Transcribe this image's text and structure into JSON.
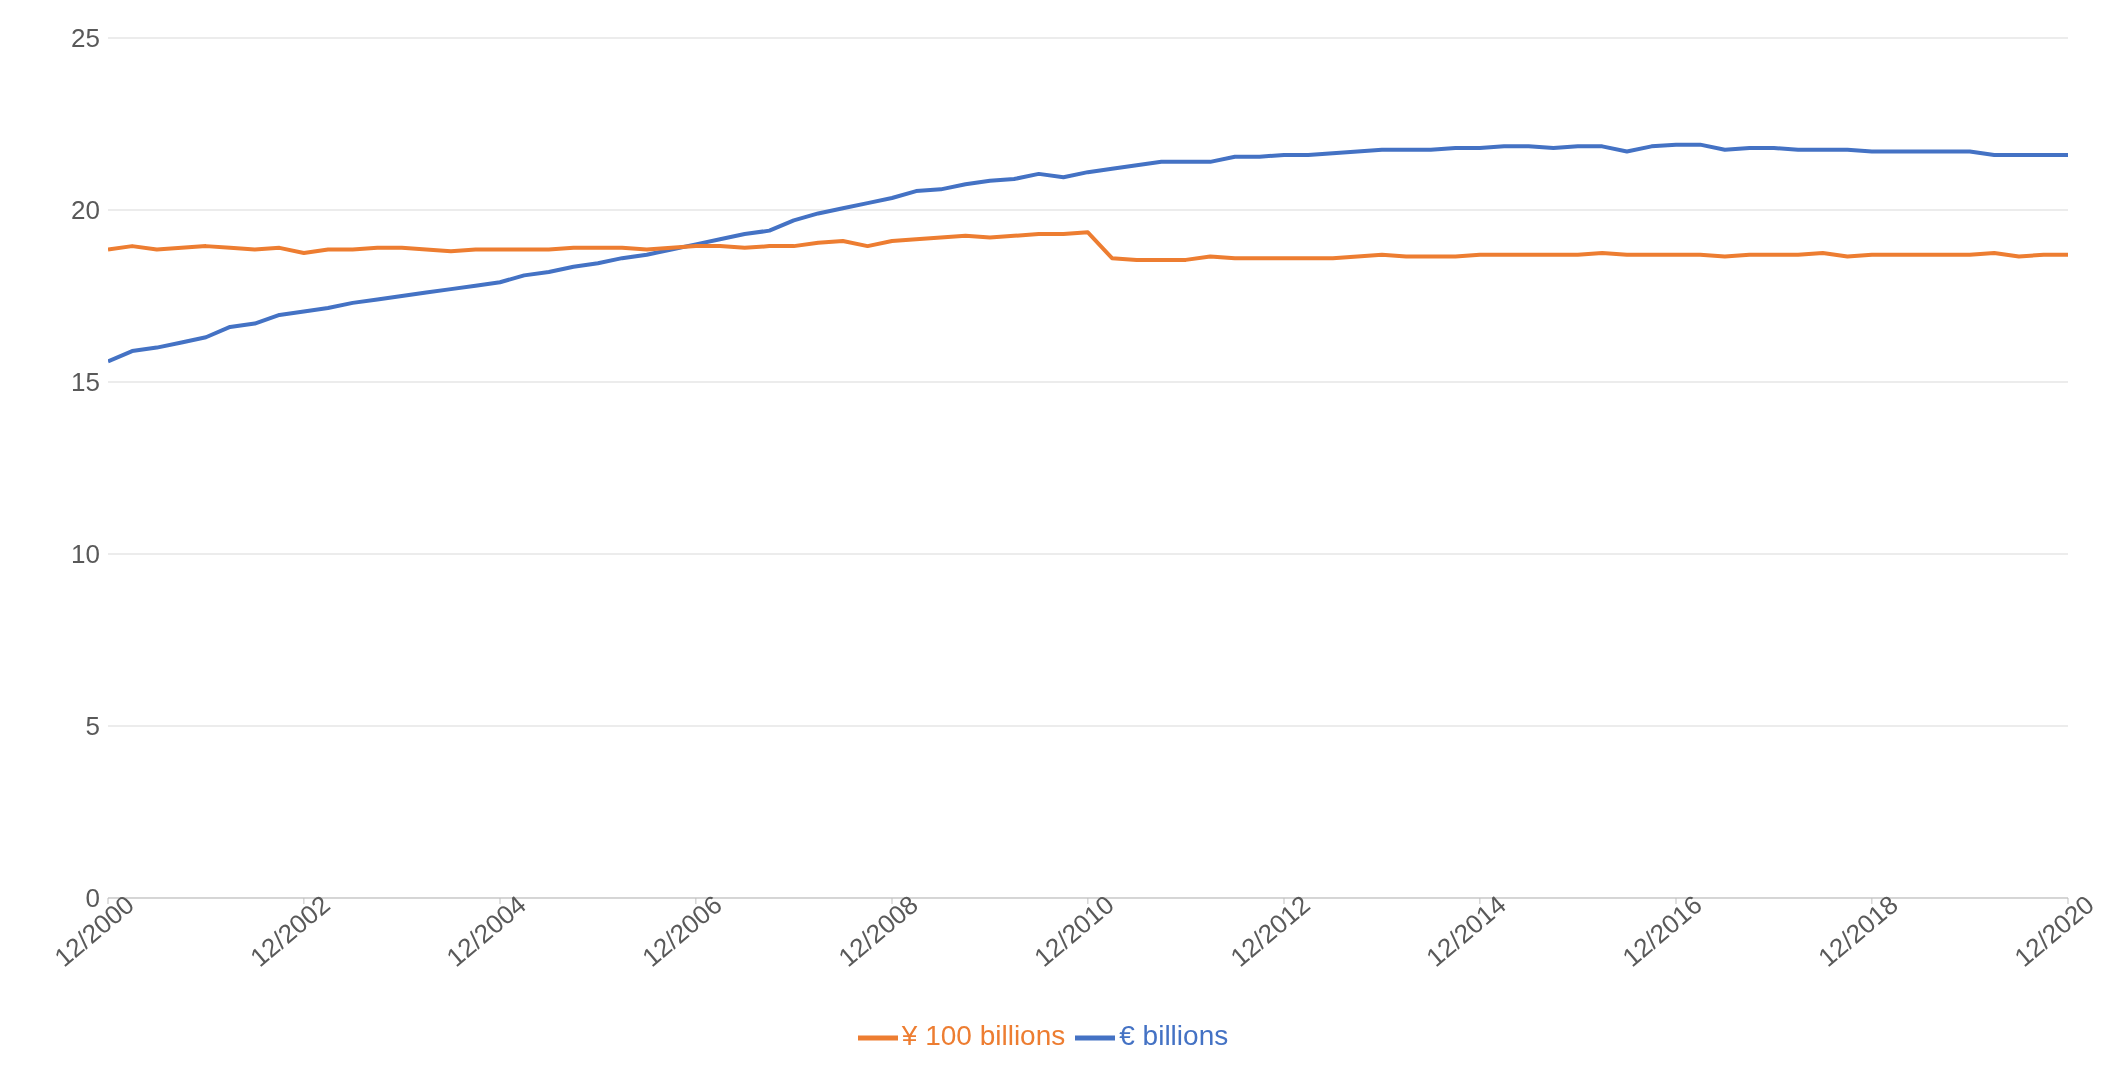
{
  "chart_data": {
    "type": "line",
    "x": [
      "2000-12",
      "2001-03",
      "2001-06",
      "2001-09",
      "2001-12",
      "2002-03",
      "2002-06",
      "2002-09",
      "2002-12",
      "2003-03",
      "2003-06",
      "2003-09",
      "2003-12",
      "2004-03",
      "2004-06",
      "2004-09",
      "2004-12",
      "2005-03",
      "2005-06",
      "2005-09",
      "2005-12",
      "2006-03",
      "2006-06",
      "2006-09",
      "2006-12",
      "2007-03",
      "2007-06",
      "2007-09",
      "2007-12",
      "2008-03",
      "2008-06",
      "2008-09",
      "2008-12",
      "2009-03",
      "2009-06",
      "2009-09",
      "2009-12",
      "2010-03",
      "2010-06",
      "2010-09",
      "2010-12",
      "2011-03",
      "2011-06",
      "2011-09",
      "2011-12",
      "2012-03",
      "2012-06",
      "2012-09",
      "2012-12",
      "2013-03",
      "2013-06",
      "2013-09",
      "2013-12",
      "2014-03",
      "2014-06",
      "2014-09",
      "2014-12",
      "2015-03",
      "2015-06",
      "2015-09",
      "2015-12",
      "2016-03",
      "2016-06",
      "2016-09",
      "2016-12",
      "2017-03",
      "2017-06",
      "2017-09",
      "2017-12",
      "2018-03",
      "2018-06",
      "2018-09",
      "2018-12",
      "2019-03",
      "2019-06",
      "2019-09",
      "2019-12",
      "2020-03",
      "2020-06",
      "2020-09",
      "2020-12"
    ],
    "series": [
      {
        "name": "€ billions",
        "color": "#4472c4",
        "values": [
          15.6,
          15.9,
          16.0,
          16.15,
          16.3,
          16.6,
          16.7,
          16.95,
          17.05,
          17.15,
          17.3,
          17.4,
          17.5,
          17.6,
          17.7,
          17.8,
          17.9,
          18.1,
          18.2,
          18.35,
          18.45,
          18.6,
          18.7,
          18.85,
          19.0,
          19.15,
          19.3,
          19.4,
          19.7,
          19.9,
          20.05,
          20.2,
          20.35,
          20.55,
          20.6,
          20.75,
          20.85,
          20.9,
          21.05,
          20.95,
          21.1,
          21.2,
          21.3,
          21.4,
          21.4,
          21.4,
          21.55,
          21.55,
          21.6,
          21.6,
          21.65,
          21.7,
          21.75,
          21.75,
          21.75,
          21.8,
          21.8,
          21.85,
          21.85,
          21.8,
          21.85,
          21.85,
          21.7,
          21.85,
          21.9,
          21.9,
          21.75,
          21.8,
          21.8,
          21.75,
          21.75,
          21.75,
          21.7,
          21.7,
          21.7,
          21.7,
          21.7,
          21.6,
          21.6,
          21.6,
          21.6
        ]
      },
      {
        "name": "¥ 100 billions",
        "color": "#ed7d31",
        "values": [
          18.85,
          18.95,
          18.85,
          18.9,
          18.95,
          18.9,
          18.85,
          18.9,
          18.75,
          18.85,
          18.85,
          18.9,
          18.9,
          18.85,
          18.8,
          18.85,
          18.85,
          18.85,
          18.85,
          18.9,
          18.9,
          18.9,
          18.85,
          18.9,
          18.95,
          18.95,
          18.9,
          18.95,
          18.95,
          19.05,
          19.1,
          18.95,
          19.1,
          19.15,
          19.2,
          19.25,
          19.2,
          19.25,
          19.3,
          19.3,
          19.35,
          18.6,
          18.55,
          18.55,
          18.55,
          18.65,
          18.6,
          18.6,
          18.6,
          18.6,
          18.6,
          18.65,
          18.7,
          18.65,
          18.65,
          18.65,
          18.7,
          18.7,
          18.7,
          18.7,
          18.7,
          18.75,
          18.7,
          18.7,
          18.7,
          18.7,
          18.65,
          18.7,
          18.7,
          18.7,
          18.75,
          18.65,
          18.7,
          18.7,
          18.7,
          18.7,
          18.7,
          18.75,
          18.65,
          18.7,
          18.7
        ]
      }
    ],
    "xlim": [
      "2000-12",
      "2020-12"
    ],
    "xticks": [
      {
        "value": "2000-12",
        "label": "12/2000"
      },
      {
        "value": "2002-12",
        "label": "12/2002"
      },
      {
        "value": "2004-12",
        "label": "12/2004"
      },
      {
        "value": "2006-12",
        "label": "12/2006"
      },
      {
        "value": "2008-12",
        "label": "12/2008"
      },
      {
        "value": "2010-12",
        "label": "12/2010"
      },
      {
        "value": "2012-12",
        "label": "12/2012"
      },
      {
        "value": "2014-12",
        "label": "12/2014"
      },
      {
        "value": "2016-12",
        "label": "12/2016"
      },
      {
        "value": "2018-12",
        "label": "12/2018"
      },
      {
        "value": "2020-12",
        "label": "12/2020"
      }
    ],
    "ylim": [
      0,
      25
    ],
    "yticks": [
      0,
      5,
      10,
      15,
      20,
      25
    ],
    "grid": "y",
    "legend": "bottom",
    "marker": "none",
    "line_style": "solid"
  }
}
